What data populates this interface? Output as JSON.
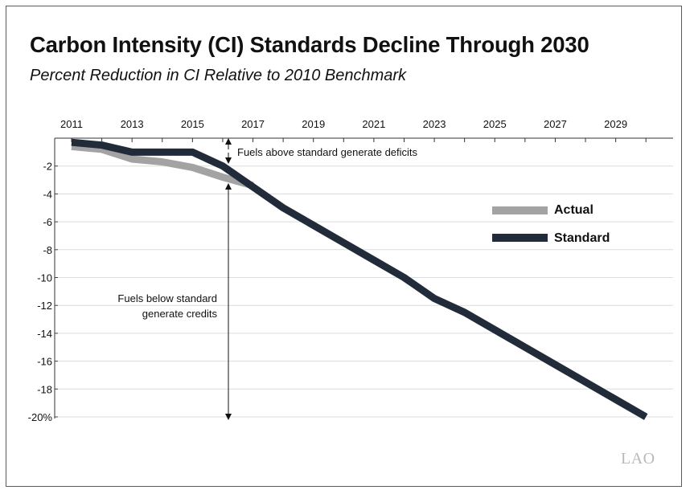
{
  "colors": {
    "actual": "#a3a3a3",
    "standard": "#222b3a",
    "grid": "#dcdcdc",
    "text": "#111111",
    "logo": "#b9b9b9"
  },
  "logo_text": "LAO",
  "chart_data": {
    "type": "line",
    "title": "Carbon Intensity (CI) Standards Decline Through 2030",
    "subtitle": "Percent Reduction in CI Relative to 2010 Benchmark",
    "x_ticks": [
      "2011",
      "2013",
      "2015",
      "2017",
      "2019",
      "2021",
      "2023",
      "2025",
      "2027",
      "2029"
    ],
    "y_ticks": [
      "-2",
      "-4",
      "-6",
      "-8",
      "-10",
      "-12",
      "-14",
      "-16",
      "-18",
      "-20%"
    ],
    "xlim": [
      2011,
      2030.5
    ],
    "ylim": [
      -20,
      0
    ],
    "grid": "horizontal",
    "legend_position": "right",
    "series": [
      {
        "name": "Actual",
        "x": [
          2011,
          2012,
          2013,
          2014,
          2015,
          2016,
          2017
        ],
        "y": [
          -0.6,
          -0.8,
          -1.5,
          -1.7,
          -2.1,
          -2.8,
          -3.4
        ]
      },
      {
        "name": "Standard",
        "x": [
          2011,
          2012,
          2013,
          2014,
          2015,
          2016,
          2017,
          2018,
          2019,
          2020,
          2021,
          2022,
          2023,
          2024,
          2025,
          2026,
          2027,
          2028,
          2029,
          2030
        ],
        "y": [
          -0.3,
          -0.5,
          -1.0,
          -1.0,
          -1.0,
          -2.0,
          -3.5,
          -5.0,
          -6.25,
          -7.5,
          -8.75,
          -10.0,
          -11.5,
          -12.5,
          -13.75,
          -15.0,
          -16.25,
          -17.5,
          -18.75,
          -20.0
        ]
      }
    ],
    "annotations": {
      "deficits": "Fuels above standard generate deficits",
      "credits_line1": "Fuels below standard",
      "credits_line2": "generate credits"
    }
  }
}
